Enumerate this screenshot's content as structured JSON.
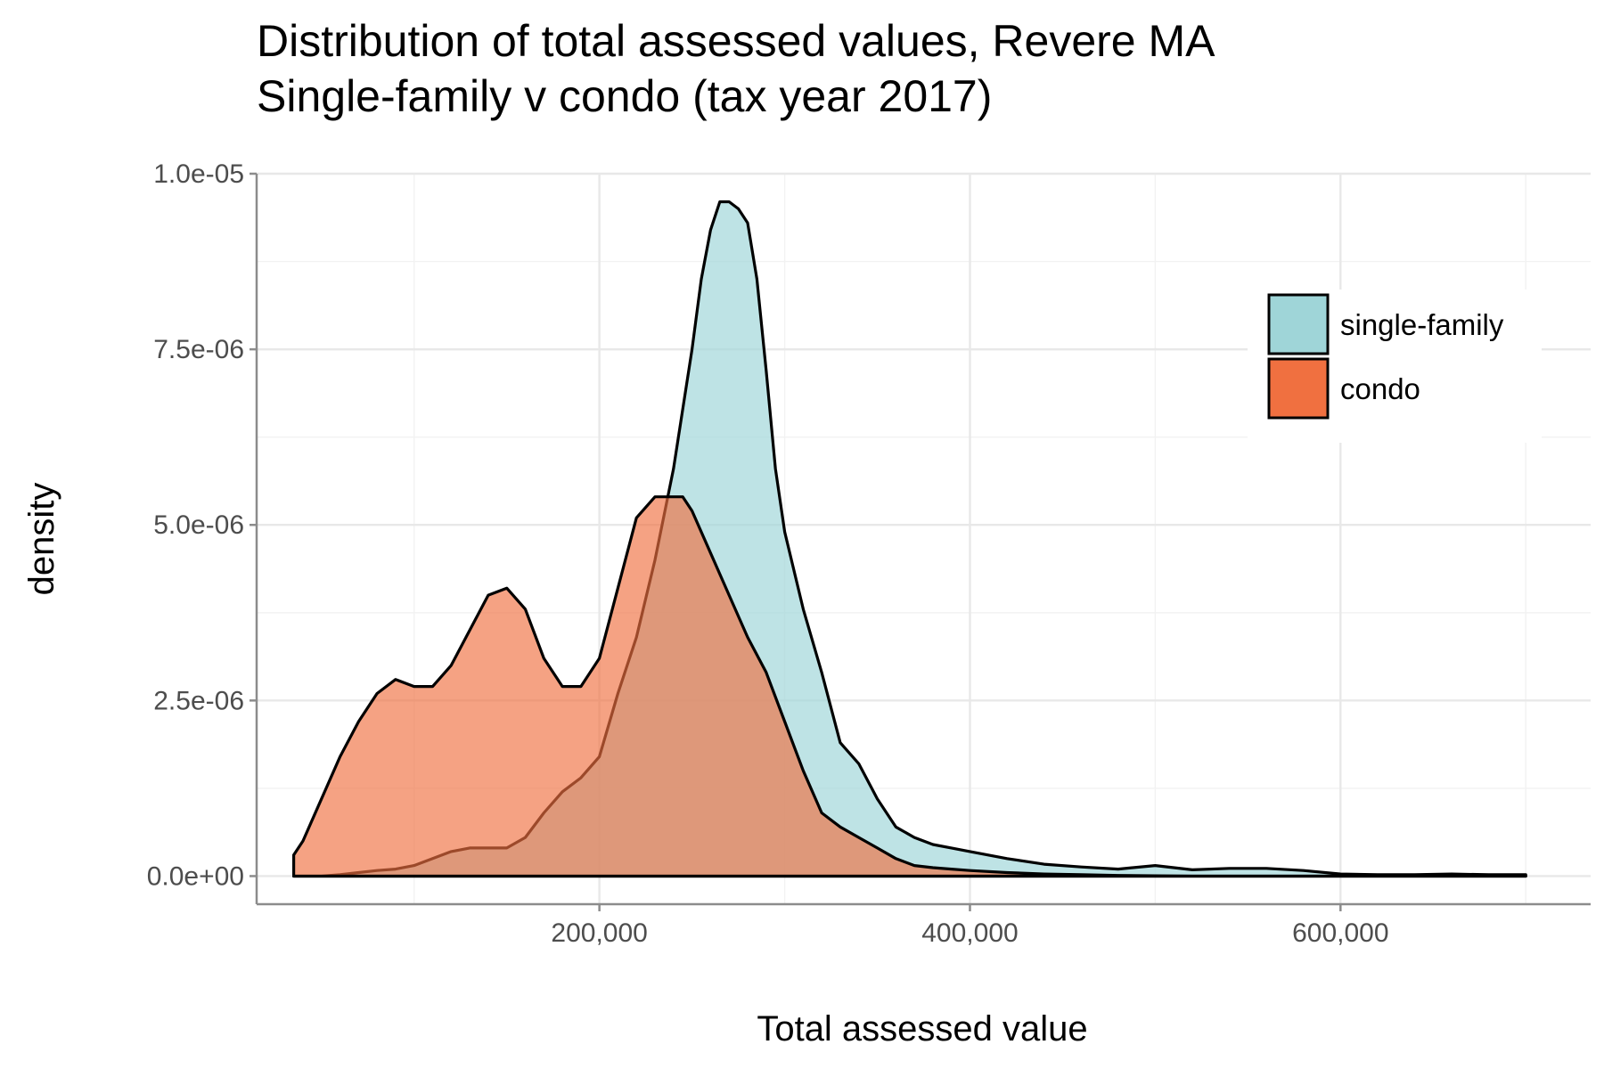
{
  "chart_data": {
    "type": "area",
    "title": "Distribution of total assessed values, Revere MA",
    "subtitle": "Single-family v condo (tax year 2017)",
    "xlabel": "Total assessed value",
    "ylabel": "density",
    "xlim": [
      15000,
      735000
    ],
    "ylim": [
      -4e-07,
      1e-05
    ],
    "x_ticks": [
      {
        "value": 200000,
        "label": "200,000"
      },
      {
        "value": 400000,
        "label": "400,000"
      },
      {
        "value": 600000,
        "label": "600,000"
      }
    ],
    "y_ticks": [
      {
        "value": 0,
        "label": "0.0e+00"
      },
      {
        "value": 2.5e-06,
        "label": "2.5e-06"
      },
      {
        "value": 5e-06,
        "label": "5.0e-06"
      },
      {
        "value": 7.5e-06,
        "label": "7.5e-06"
      },
      {
        "value": 1e-05,
        "label": "1.0e-05"
      }
    ],
    "x_minor": [
      100000,
      300000,
      500000,
      700000
    ],
    "y_minor": [
      1.25e-06,
      3.75e-06,
      6.25e-06,
      8.75e-06
    ],
    "grid": true,
    "legend_position": "top-right",
    "series": [
      {
        "name": "single-family",
        "color": "#9fd5d8",
        "opacity": 0.68,
        "x": [
          35000,
          50000,
          60000,
          70000,
          80000,
          90000,
          100000,
          110000,
          120000,
          130000,
          140000,
          150000,
          160000,
          170000,
          180000,
          190000,
          200000,
          210000,
          220000,
          230000,
          240000,
          250000,
          255000,
          260000,
          265000,
          270000,
          275000,
          280000,
          285000,
          290000,
          295000,
          300000,
          310000,
          320000,
          330000,
          340000,
          350000,
          360000,
          370000,
          380000,
          390000,
          400000,
          420000,
          440000,
          460000,
          480000,
          500000,
          520000,
          540000,
          560000,
          580000,
          600000,
          620000,
          640000,
          660000,
          680000,
          700000
        ],
        "y": [
          0,
          0,
          2e-08,
          5e-08,
          8e-08,
          1e-07,
          1.5e-07,
          2.5e-07,
          3.5e-07,
          4e-07,
          4e-07,
          4e-07,
          5.5e-07,
          9e-07,
          1.2e-06,
          1.4e-06,
          1.7e-06,
          2.6e-06,
          3.4e-06,
          4.5e-06,
          5.8e-06,
          7.5e-06,
          8.5e-06,
          9.2e-06,
          9.6e-06,
          9.6e-06,
          9.5e-06,
          9.3e-06,
          8.5e-06,
          7.2e-06,
          5.8e-06,
          4.9e-06,
          3.8e-06,
          2.9e-06,
          1.9e-06,
          1.6e-06,
          1.1e-06,
          7e-07,
          5.5e-07,
          4.5e-07,
          4e-07,
          3.5e-07,
          2.5e-07,
          1.7e-07,
          1.3e-07,
          1e-07,
          1.5e-07,
          9e-08,
          1.1e-07,
          1.1e-07,
          8e-08,
          3e-08,
          2e-08,
          2e-08,
          3e-08,
          2e-08,
          2e-08
        ]
      },
      {
        "name": "condo",
        "color": "#f07040",
        "opacity": 0.65,
        "x": [
          35000,
          40000,
          50000,
          60000,
          70000,
          80000,
          90000,
          100000,
          110000,
          120000,
          130000,
          140000,
          150000,
          160000,
          170000,
          180000,
          190000,
          200000,
          210000,
          220000,
          230000,
          240000,
          245000,
          250000,
          260000,
          270000,
          280000,
          290000,
          300000,
          310000,
          320000,
          330000,
          340000,
          350000,
          360000,
          370000,
          380000,
          390000,
          400000,
          420000,
          440000,
          460000,
          480000,
          500000,
          520000,
          540000,
          560000,
          580000,
          600000,
          620000,
          640000,
          660000,
          680000,
          700000
        ],
        "y": [
          3e-07,
          5e-07,
          1.1e-06,
          1.7e-06,
          2.2e-06,
          2.6e-06,
          2.8e-06,
          2.7e-06,
          2.7e-06,
          3e-06,
          3.5e-06,
          4e-06,
          4.1e-06,
          3.8e-06,
          3.1e-06,
          2.7e-06,
          2.7e-06,
          3.1e-06,
          4.1e-06,
          5.1e-06,
          5.4e-06,
          5.4e-06,
          5.4e-06,
          5.2e-06,
          4.6e-06,
          4e-06,
          3.4e-06,
          2.9e-06,
          2.2e-06,
          1.5e-06,
          9e-07,
          7e-07,
          5.5e-07,
          4e-07,
          2.5e-07,
          1.5e-07,
          1.2e-07,
          1e-07,
          8e-08,
          5e-08,
          3e-08,
          2e-08,
          1e-08,
          5e-09,
          0,
          0,
          0,
          0,
          0,
          0,
          0,
          0,
          0,
          0
        ]
      }
    ]
  }
}
